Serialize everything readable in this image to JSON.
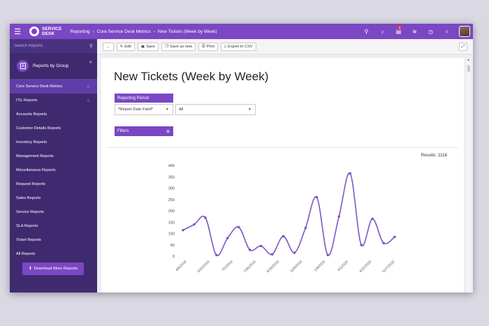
{
  "header": {
    "brand_line1": "SERVICE",
    "brand_line2": "DESK",
    "breadcrumbs": [
      "Reporting",
      "Core Service Desk Metrics",
      "New Tickets (Week by Week)"
    ],
    "notification_count": "1"
  },
  "sidebar": {
    "search_placeholder": "Search Reports",
    "group_label": "Reports by Group",
    "items": [
      {
        "label": "Core Service Desk Metrics",
        "active": true
      },
      {
        "label": "ITIL Reports"
      },
      {
        "label": "Accounts Reports"
      },
      {
        "label": "Customer Details Reports"
      },
      {
        "label": "Inventory Reports"
      },
      {
        "label": "Management Reports"
      },
      {
        "label": "Miscellaneous Reports"
      },
      {
        "label": "Request Reports"
      },
      {
        "label": "Sales Reports"
      },
      {
        "label": "Service Reports"
      },
      {
        "label": "SLA Reports"
      },
      {
        "label": "Ticket Reports"
      },
      {
        "label": "All Reports"
      }
    ],
    "download_label": "Download More Reports"
  },
  "toolbar": {
    "edit": "Edit",
    "save": "Save",
    "save_as_new": "Save as new",
    "print": "Print",
    "export": "Export to CSV"
  },
  "report": {
    "title": "New Tickets (Week by Week)",
    "reporting_period_label": "Reporting Period",
    "date_field": "*Report Date Field*",
    "period_value": "All",
    "filters_label": "Filters",
    "results": "Results: 2118"
  },
  "colors": {
    "accent": "#7b47c4",
    "sidebar": "#3f2a70",
    "line": "#7e57c2"
  },
  "chart_data": {
    "type": "line",
    "title": "",
    "xlabel": "",
    "ylabel": "",
    "ylim": [
      0,
      400
    ],
    "y_ticks": [
      0,
      50,
      100,
      150,
      200,
      250,
      300,
      350,
      400
    ],
    "x_tick_labels": [
      "4/8/2019",
      "5/20/2019",
      "7/2/2019",
      "7/26/2019",
      "9/16/2019",
      "11/8/2019",
      "1/8/2020",
      "4/1/2020",
      "4/22/2020",
      "5/17/2020"
    ],
    "series": [
      {
        "values": [
          115,
          140,
          170,
          5,
          80,
          128,
          28,
          45,
          8,
          88,
          15,
          125,
          260,
          5,
          175,
          365,
          50,
          165,
          58,
          85
        ]
      }
    ]
  }
}
